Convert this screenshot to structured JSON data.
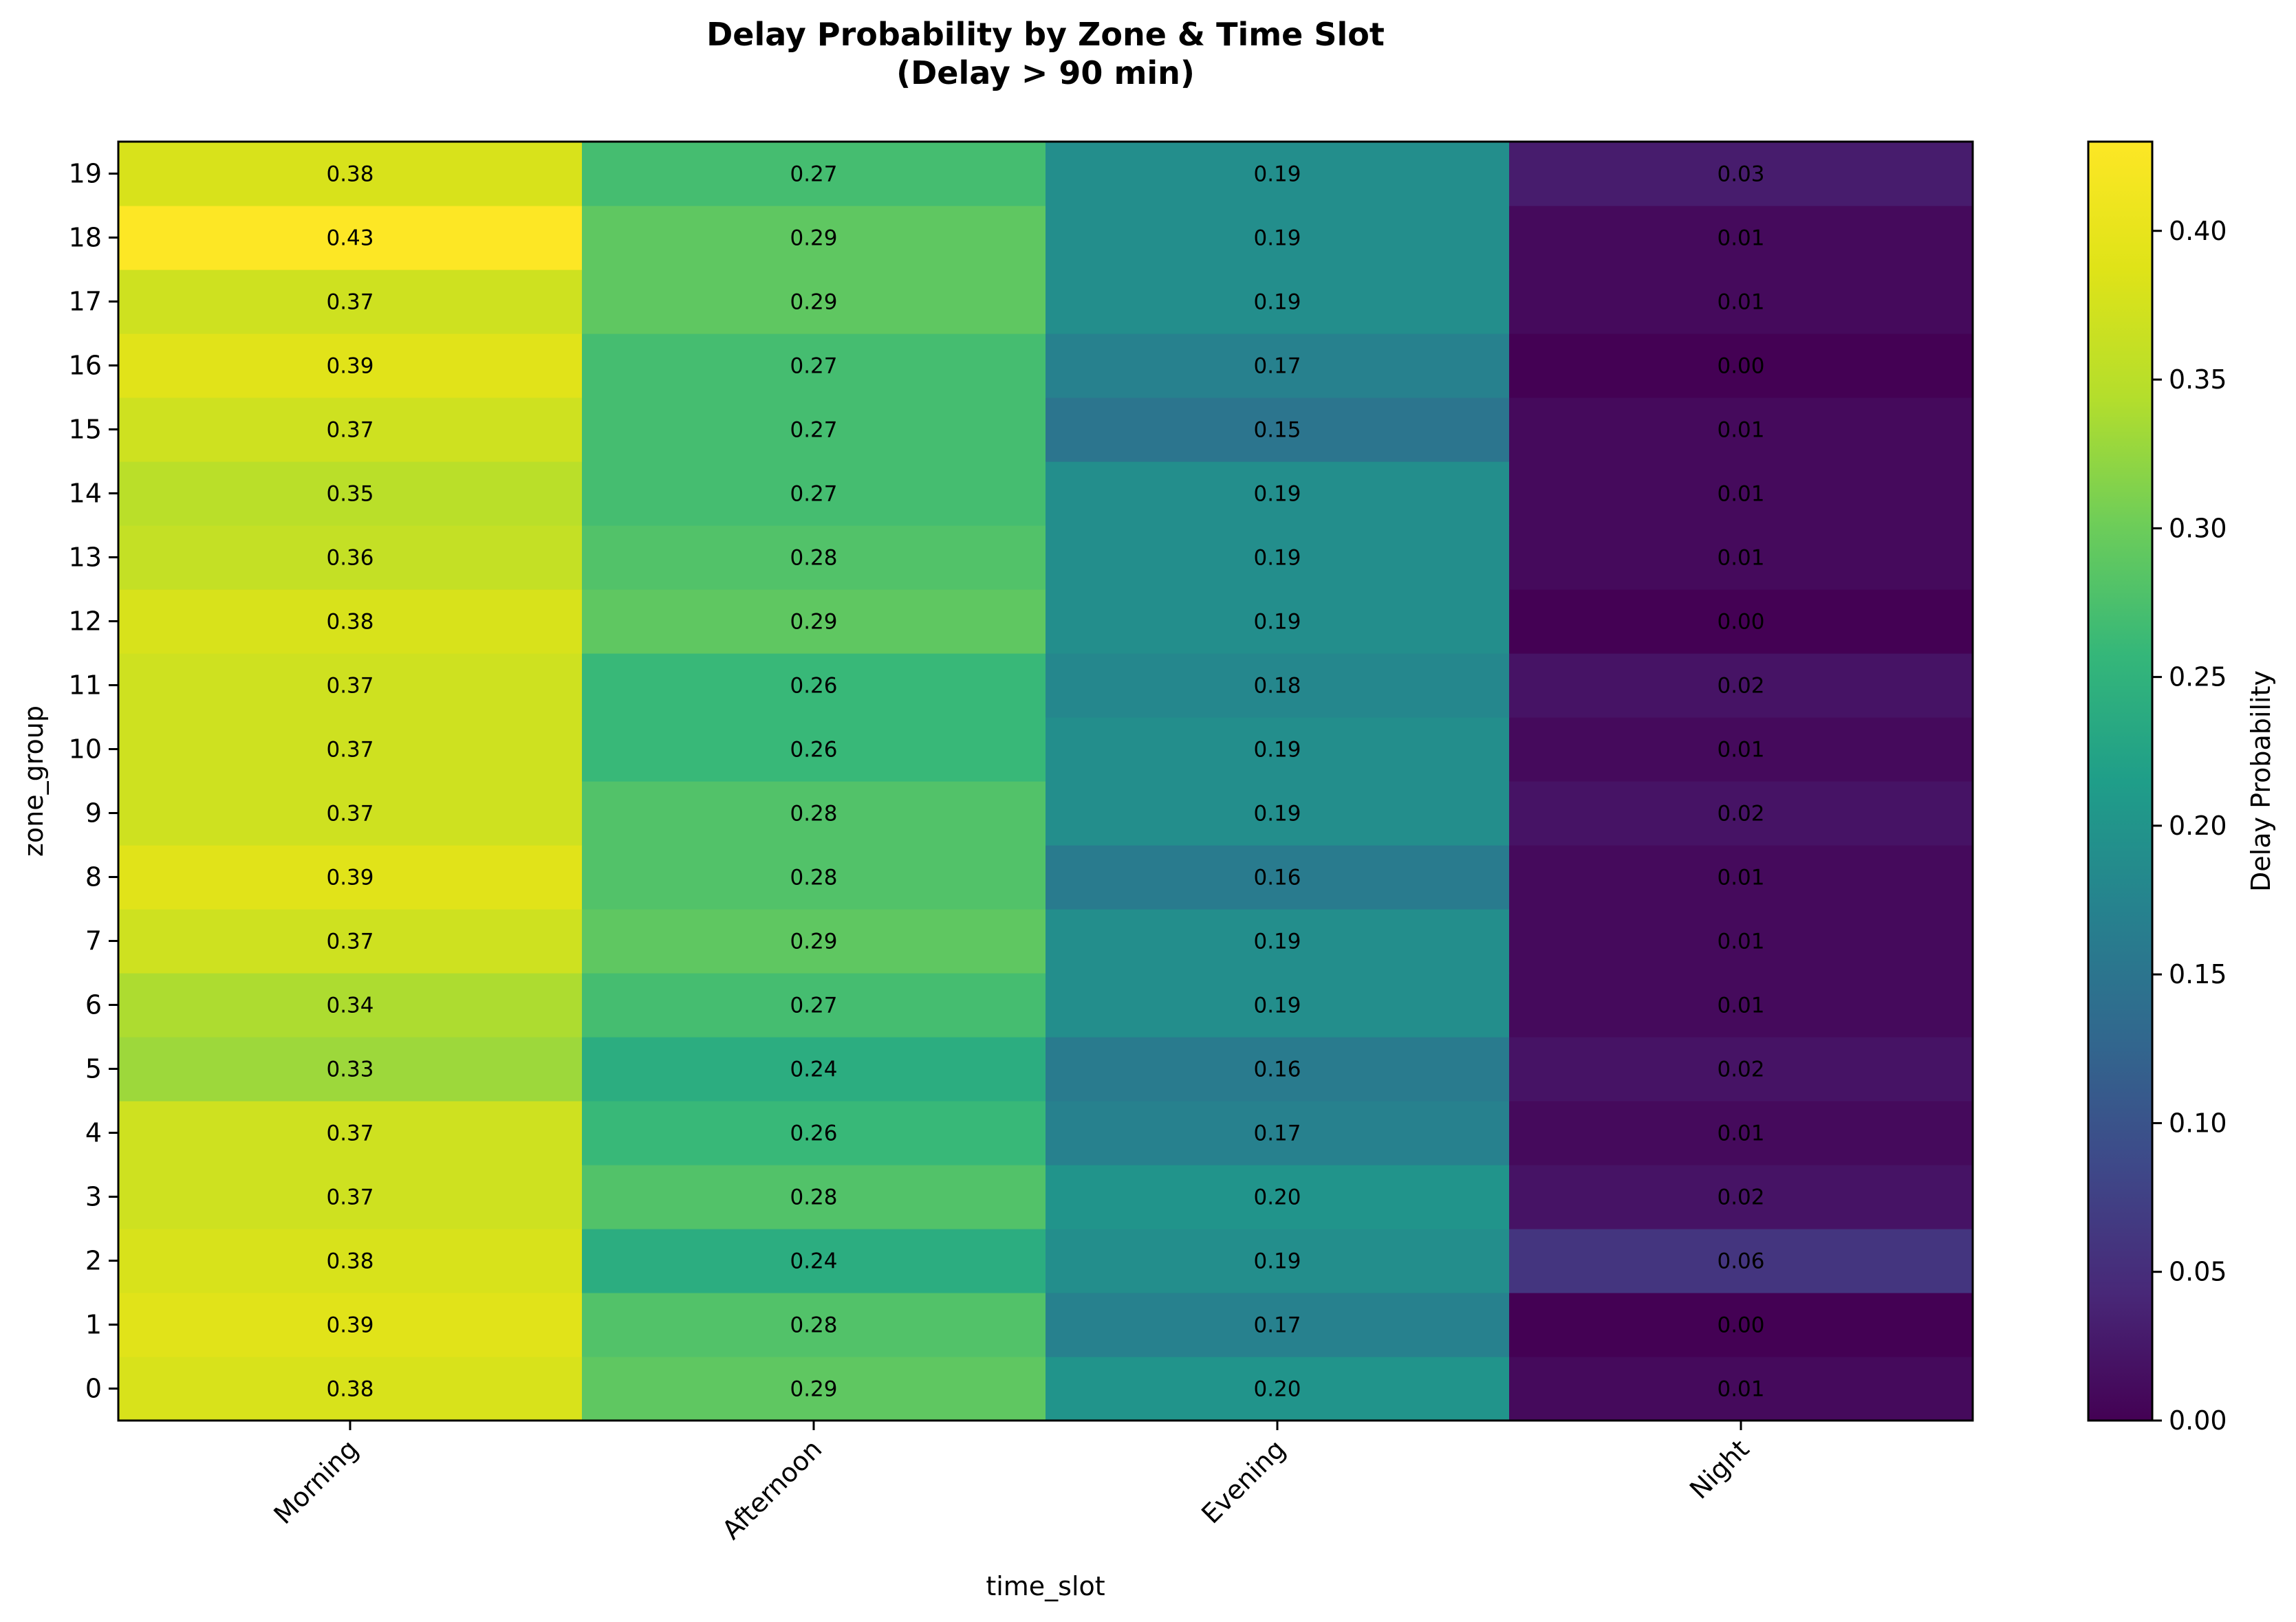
{
  "chart_data": {
    "type": "heatmap",
    "title_line1": "Delay Probability by Zone & Time Slot",
    "title_line2": "(Delay > 90 min)",
    "xlabel": "time_slot",
    "ylabel": "zone_group",
    "x_categories": [
      "Morning",
      "Afternoon",
      "Evening",
      "Night"
    ],
    "y_categories": [
      "0",
      "1",
      "2",
      "3",
      "4",
      "5",
      "6",
      "7",
      "8",
      "9",
      "10",
      "11",
      "12",
      "13",
      "14",
      "15",
      "16",
      "17",
      "18",
      "19"
    ],
    "values": [
      [
        0.38,
        0.29,
        0.2,
        0.01
      ],
      [
        0.39,
        0.28,
        0.17,
        0.0
      ],
      [
        0.38,
        0.24,
        0.19,
        0.06
      ],
      [
        0.37,
        0.28,
        0.2,
        0.02
      ],
      [
        0.37,
        0.26,
        0.17,
        0.01
      ],
      [
        0.33,
        0.24,
        0.16,
        0.02
      ],
      [
        0.34,
        0.27,
        0.19,
        0.01
      ],
      [
        0.37,
        0.29,
        0.19,
        0.01
      ],
      [
        0.39,
        0.28,
        0.16,
        0.01
      ],
      [
        0.37,
        0.28,
        0.19,
        0.02
      ],
      [
        0.37,
        0.26,
        0.19,
        0.01
      ],
      [
        0.37,
        0.26,
        0.18,
        0.02
      ],
      [
        0.38,
        0.29,
        0.19,
        0.0
      ],
      [
        0.36,
        0.28,
        0.19,
        0.01
      ],
      [
        0.35,
        0.27,
        0.19,
        0.01
      ],
      [
        0.37,
        0.27,
        0.15,
        0.01
      ],
      [
        0.39,
        0.27,
        0.17,
        0.0
      ],
      [
        0.37,
        0.29,
        0.19,
        0.01
      ],
      [
        0.43,
        0.29,
        0.19,
        0.01
      ],
      [
        0.38,
        0.27,
        0.19,
        0.03
      ]
    ],
    "colormap": "viridis",
    "vmin": 0.0,
    "vmax": 0.43,
    "colorbar_label": "Delay Probability",
    "colorbar_ticks": [
      "0.00",
      "0.05",
      "0.10",
      "0.15",
      "0.20",
      "0.25",
      "0.30",
      "0.35",
      "0.40"
    ],
    "colorbar_tick_values": [
      0.0,
      0.05,
      0.1,
      0.15,
      0.2,
      0.25,
      0.3,
      0.35,
      0.4
    ],
    "grid": false
  }
}
